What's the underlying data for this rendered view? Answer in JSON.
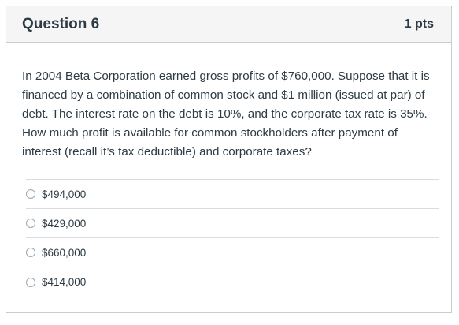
{
  "question": {
    "title": "Question 6",
    "points": "1 pts",
    "text": "In 2004 Beta Corporation earned gross profits of $760,000. Suppose that it is financed by a combination of common stock and $1 million (issued at par) of debt. The interest rate on the debt is 10%, and the corporate tax rate is 35%. How much profit is available for common stockholders after payment of interest (recall it’s tax deductible) and corporate taxes?"
  },
  "answers": [
    {
      "label": "$494,000"
    },
    {
      "label": "$429,000"
    },
    {
      "label": "$660,000"
    },
    {
      "label": "$414,000"
    }
  ]
}
